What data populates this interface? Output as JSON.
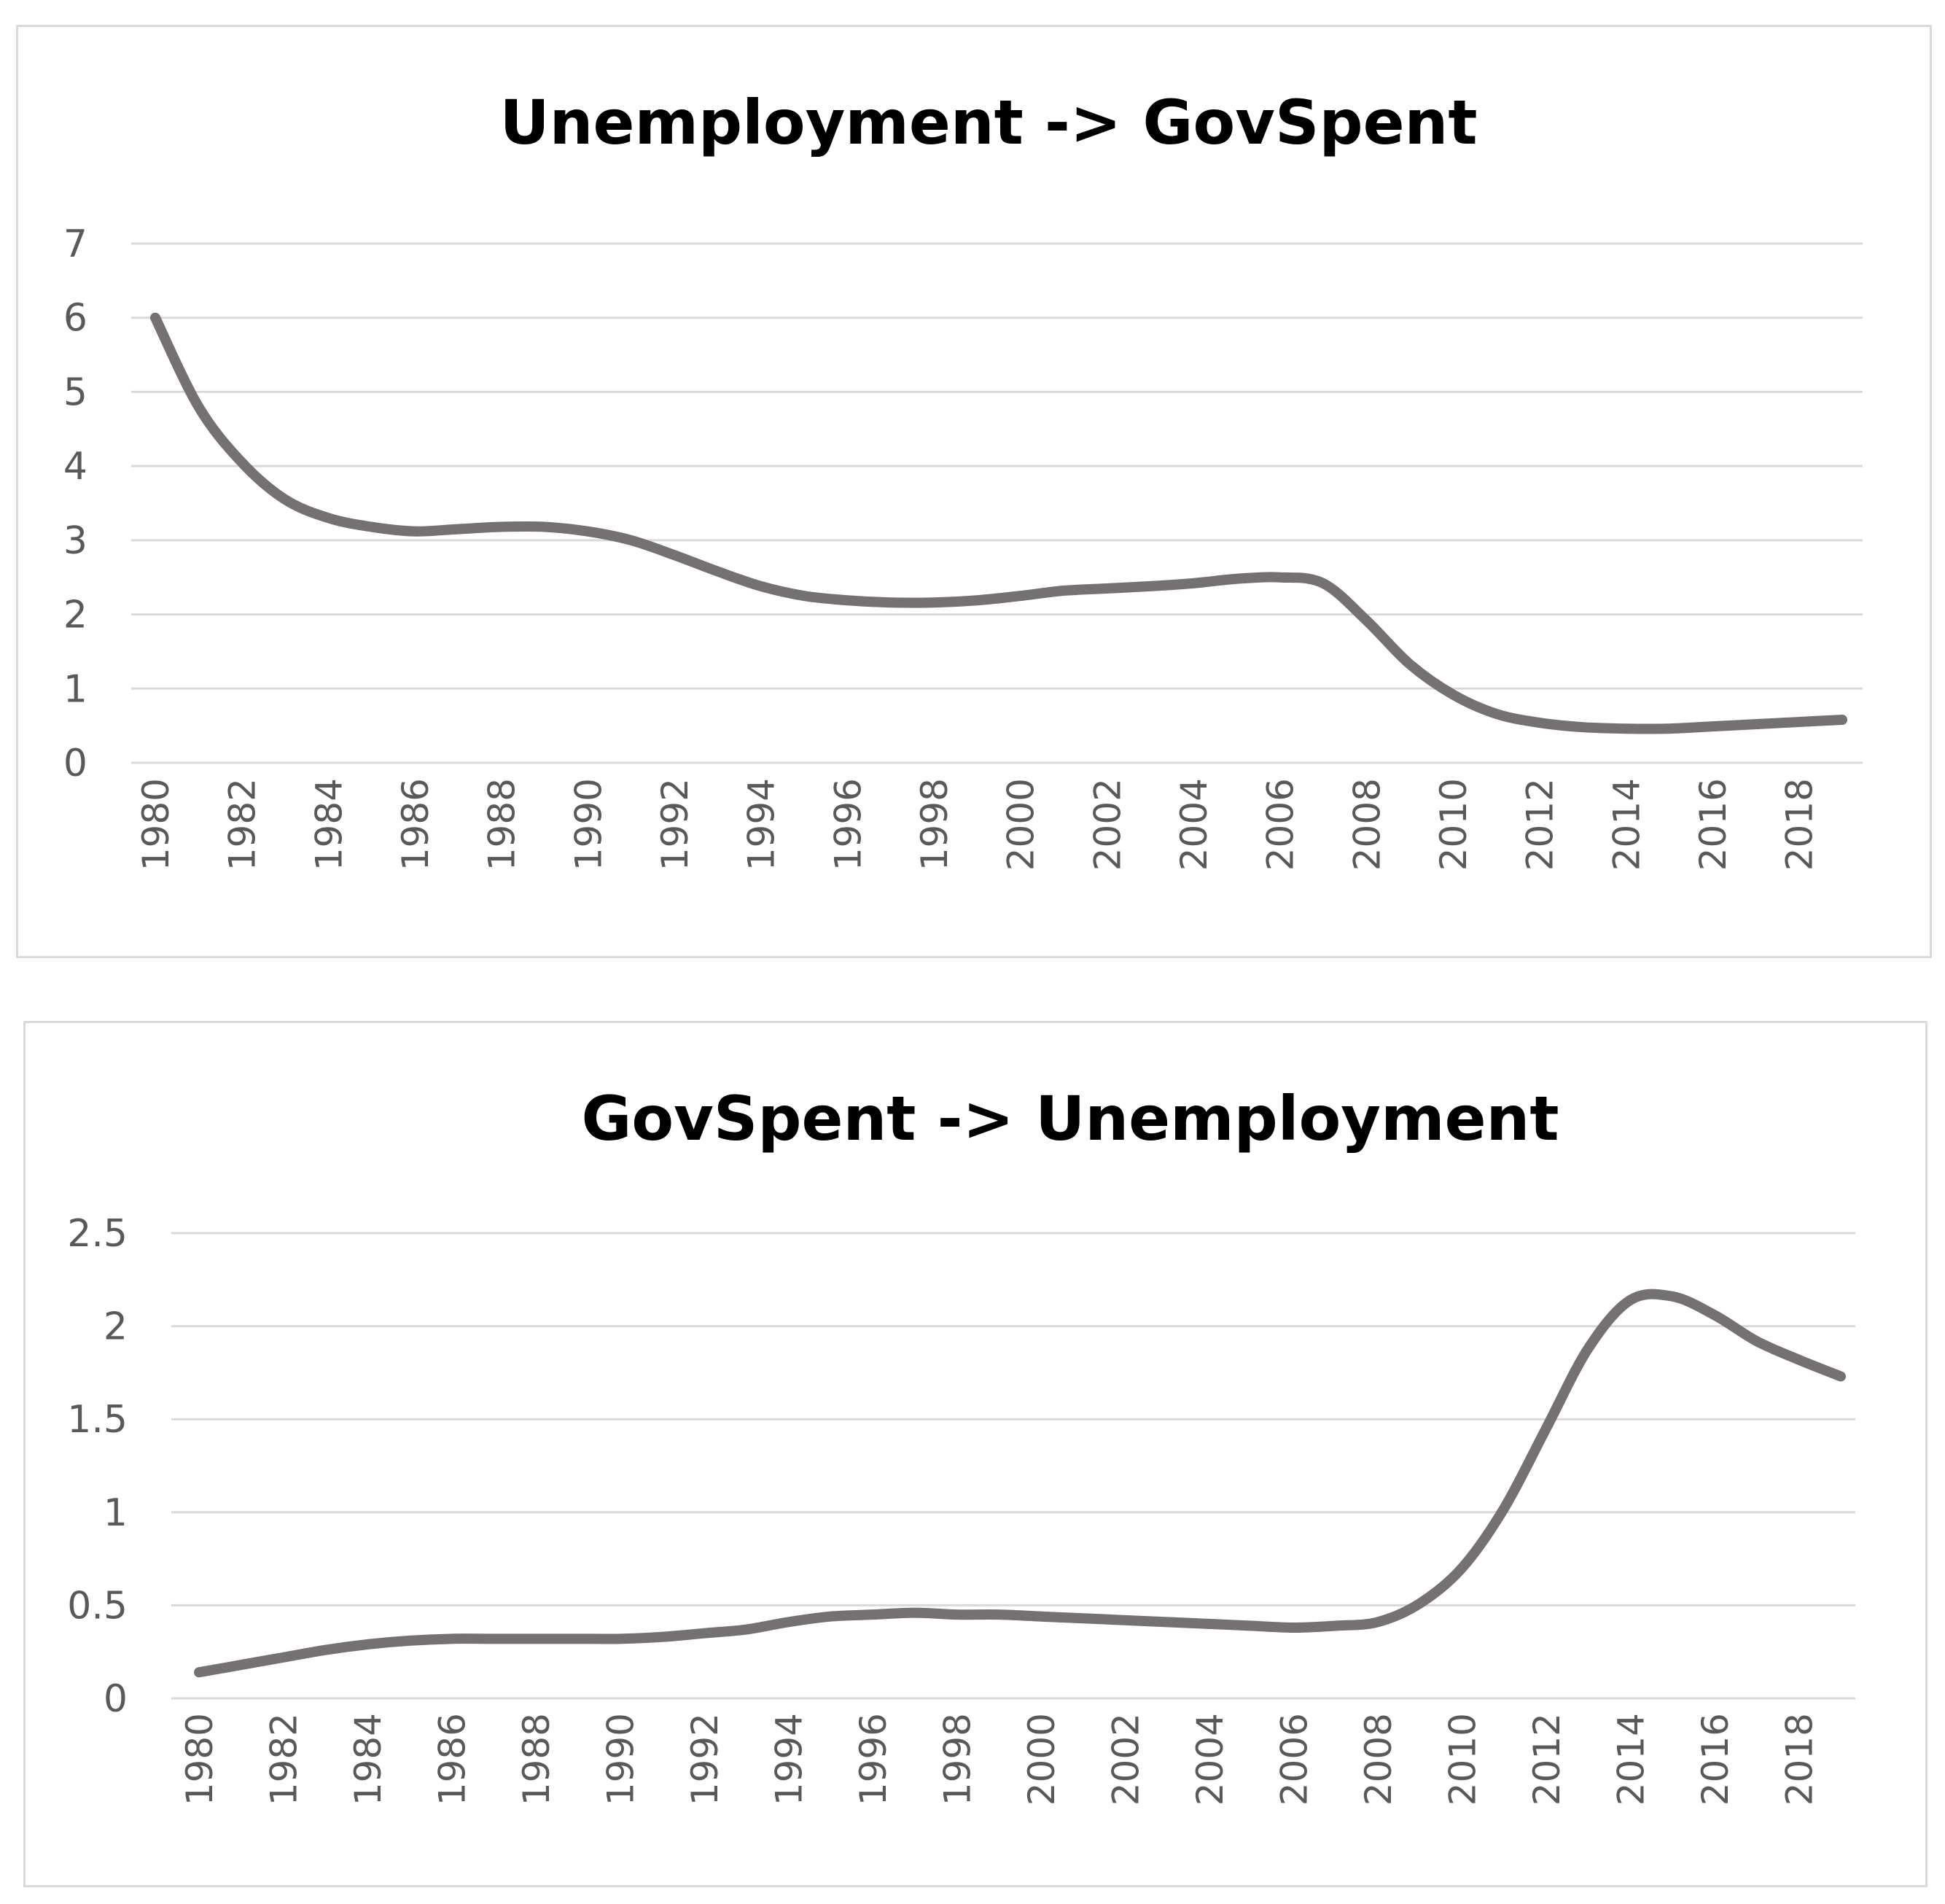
{
  "colors": {
    "line": "#767171",
    "grid": "#d9d9d9",
    "tick_text": "#595959",
    "title": "#000000",
    "border": "#d9d9d9"
  },
  "chart_data": [
    {
      "type": "line",
      "title": "Unemployment -> GovSpent",
      "xlabel": "",
      "ylabel": "",
      "ylim": [
        0,
        7
      ],
      "yticks": [
        "0",
        "1",
        "2",
        "3",
        "4",
        "5",
        "6",
        "7"
      ],
      "x": [
        1980,
        1981,
        1982,
        1983,
        1984,
        1985,
        1986,
        1987,
        1988,
        1989,
        1990,
        1991,
        1992,
        1993,
        1994,
        1995,
        1996,
        1997,
        1998,
        1999,
        2000,
        2001,
        2002,
        2003,
        2004,
        2005,
        2006,
        2007,
        2008,
        2009,
        2010,
        2011,
        2012,
        2013,
        2014,
        2015,
        2016,
        2017,
        2018,
        2019
      ],
      "xtick_labels": [
        "1980",
        "1982",
        "1984",
        "1986",
        "1988",
        "1990",
        "1992",
        "1994",
        "1996",
        "1998",
        "2000",
        "2002",
        "2004",
        "2006",
        "2008",
        "2010",
        "2012",
        "2014",
        "2016",
        "2018"
      ],
      "series": [
        {
          "values": [
            6.0,
            4.8,
            4.05,
            3.55,
            3.3,
            3.18,
            3.12,
            3.15,
            3.18,
            3.18,
            3.12,
            3.0,
            2.8,
            2.58,
            2.38,
            2.25,
            2.19,
            2.16,
            2.16,
            2.19,
            2.25,
            2.32,
            2.35,
            2.38,
            2.42,
            2.48,
            2.5,
            2.42,
            1.92,
            1.33,
            0.92,
            0.66,
            0.54,
            0.48,
            0.46,
            0.46,
            0.49,
            0.52,
            0.55,
            0.58
          ]
        }
      ],
      "grid": true,
      "legend": "none"
    },
    {
      "type": "line",
      "title": "GovSpent -> Unemployment",
      "xlabel": "",
      "ylabel": "",
      "ylim": [
        0,
        2.5
      ],
      "yticks": [
        "0",
        "0.5",
        "1",
        "1.5",
        "2",
        "2.5"
      ],
      "x": [
        1980,
        1981,
        1982,
        1983,
        1984,
        1985,
        1986,
        1987,
        1988,
        1989,
        1990,
        1991,
        1992,
        1993,
        1994,
        1995,
        1996,
        1997,
        1998,
        1999,
        2000,
        2001,
        2002,
        2003,
        2004,
        2005,
        2006,
        2007,
        2008,
        2009,
        2010,
        2011,
        2012,
        2013,
        2014,
        2015,
        2016,
        2017,
        2018,
        2019
      ],
      "xtick_labels": [
        "1980",
        "1982",
        "1984",
        "1986",
        "1988",
        "1990",
        "1992",
        "1994",
        "1996",
        "1998",
        "2000",
        "2002",
        "2004",
        "2006",
        "2008",
        "2010",
        "2012",
        "2014",
        "2016",
        "2018"
      ],
      "series": [
        {
          "values": [
            0.14,
            0.18,
            0.22,
            0.26,
            0.29,
            0.31,
            0.32,
            0.32,
            0.32,
            0.32,
            0.32,
            0.33,
            0.35,
            0.37,
            0.41,
            0.44,
            0.45,
            0.46,
            0.45,
            0.45,
            0.44,
            0.43,
            0.42,
            0.41,
            0.4,
            0.39,
            0.38,
            0.39,
            0.41,
            0.51,
            0.7,
            1.02,
            1.45,
            1.88,
            2.14,
            2.16,
            2.06,
            1.92,
            1.82,
            1.73
          ]
        }
      ],
      "grid": true,
      "legend": "none"
    }
  ]
}
